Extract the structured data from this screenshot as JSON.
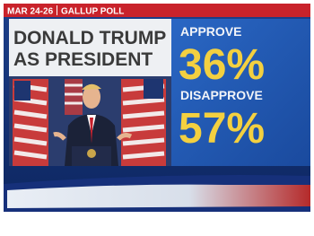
{
  "header": {
    "date": "MAR 24-26",
    "source": "GALLUP POLL"
  },
  "title": {
    "line1": "DONALD TRUMP",
    "line2": "AS PRESIDENT"
  },
  "results": [
    {
      "label": "APPROVE",
      "value": "36%"
    },
    {
      "label": "DISAPPROVE",
      "value": "57%"
    }
  ]
}
